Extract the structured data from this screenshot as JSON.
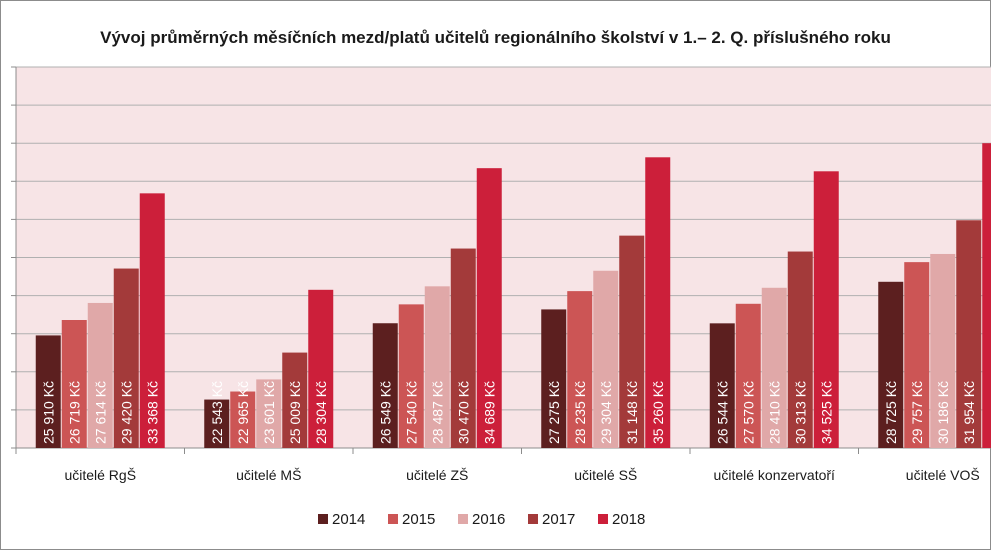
{
  "chart_data": {
    "type": "bar",
    "title": "Vývoj průměrných měsíčních mezd/platů učitelů  regionálního školství v 1.– 2.  Q. příslušného roku",
    "categories": [
      "učitelé RgŠ",
      "učitelé MŠ",
      "učitelé ZŠ",
      "učitelé SŠ",
      "učitelé konzervatoří",
      "učitelé VOŠ"
    ],
    "series": [
      {
        "name": "2014",
        "color": "#5c1f1f",
        "values": [
          25910,
          22543,
          26549,
          27275,
          26544,
          28725
        ],
        "labels": [
          "25 910 Kč",
          "22 543 Kč",
          "26 549 Kč",
          "27 275 Kč",
          "26 544 Kč",
          "28 725 Kč"
        ]
      },
      {
        "name": "2015",
        "color": "#cc5555",
        "values": [
          26719,
          22965,
          27540,
          28235,
          27570,
          29757
        ],
        "labels": [
          "26 719 Kč",
          "22 965 Kč",
          "27 540 Kč",
          "28 235 Kč",
          "27 570 Kč",
          "29 757 Kč"
        ]
      },
      {
        "name": "2016",
        "color": "#e0a8a8",
        "values": [
          27614,
          23601,
          28487,
          29304,
          28410,
          30186
        ],
        "labels": [
          "27 614 Kč",
          "23 601 Kč",
          "28 487 Kč",
          "29 304 Kč",
          "28 410 Kč",
          "30 186 Kč"
        ]
      },
      {
        "name": "2017",
        "color": "#a33a3a",
        "values": [
          29420,
          25009,
          30470,
          31148,
          30313,
          31954
        ],
        "labels": [
          "29 420 Kč",
          "25 009 Kč",
          "30 470 Kč",
          "31 148 Kč",
          "30 313 Kč",
          "31 954 Kč"
        ]
      },
      {
        "name": "2018",
        "color": "#cc1f3a",
        "values": [
          33368,
          28304,
          34689,
          35260,
          34525,
          36000
        ],
        "labels": [
          "33 368 Kč",
          "28 304 Kč",
          "34 689 Kč",
          "35 260 Kč",
          "34 525 Kč",
          ""
        ]
      }
    ],
    "ylim": [
      20000,
      40000
    ],
    "grid": true,
    "legend": "bottom",
    "plot_background": "#f7e4e6",
    "gridline_color": "#b0b0b0"
  }
}
